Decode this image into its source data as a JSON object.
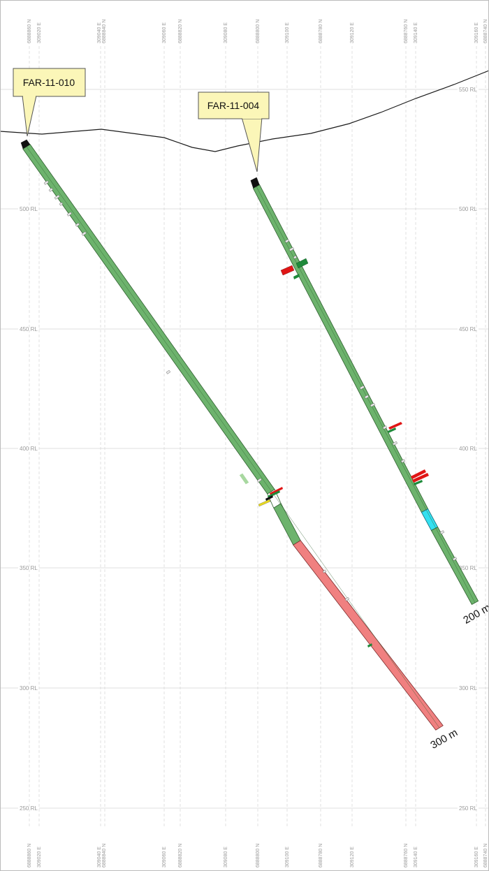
{
  "section": {
    "rl_levels": [
      "550 RL",
      "500 RL",
      "450 RL",
      "400 RL",
      "350 RL",
      "300 RL",
      "250 RL"
    ],
    "grid_columns": [
      {
        "labels": [
          "6888860 N"
        ]
      },
      {
        "labels": [
          "309020 E"
        ]
      },
      {
        "labels": [
          "309040 E",
          "6888840 N"
        ]
      },
      {
        "labels": [
          "309060 E"
        ]
      },
      {
        "labels": [
          "6888820 N"
        ]
      },
      {
        "labels": [
          "309080 E"
        ]
      },
      {
        "labels": [
          "6888800 N"
        ]
      },
      {
        "labels": [
          "309100 E"
        ]
      },
      {
        "labels": [
          "6888780 N"
        ]
      },
      {
        "labels": [
          "309120 E"
        ]
      },
      {
        "labels": [
          "6888760 N"
        ]
      },
      {
        "labels": [
          "309140 E"
        ]
      },
      {
        "labels": [
          "309160 E"
        ]
      },
      {
        "labels": [
          "6888740 N"
        ]
      }
    ],
    "colors": {
      "grid": "#d4d4d4",
      "trace_green": "#6db36d",
      "trace_red": "#f08080",
      "trace_cyan": "#33e0f0",
      "collar": "#111111",
      "label_fill": "#fbf6b8",
      "assay_red": "#e01515",
      "assay_green": "#1f8a3a"
    }
  },
  "holes": [
    {
      "id": "FAR-11-010",
      "end_depth_label": "300 m"
    },
    {
      "id": "FAR-11-004",
      "end_depth_label": "200 m"
    }
  ]
}
